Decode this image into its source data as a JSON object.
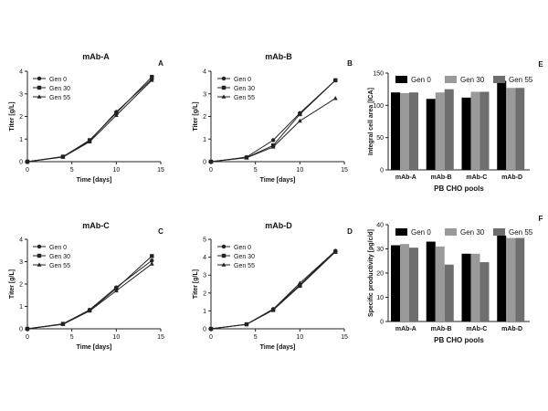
{
  "colors": {
    "axis": "#222222",
    "line": "#222222",
    "gen0": "#000000",
    "gen30": "#9a9a9a",
    "gen55": "#6e6e6e"
  },
  "chart_data": [
    {
      "type": "line",
      "panel": "A",
      "title": "mAb-A",
      "xlabel": "Time [days]",
      "ylabel": "Titer [g/L]",
      "xlim": [
        0,
        15
      ],
      "ylim": [
        0,
        4
      ],
      "xticks": [
        "0",
        "5",
        "10",
        "15"
      ],
      "yticks": [
        "0",
        "1",
        "2",
        "3",
        "4"
      ],
      "legend": "top-left",
      "grid": false,
      "series": [
        {
          "name": "Gen 0",
          "marker": "circle",
          "x": [
            0,
            4,
            7,
            10,
            14
          ],
          "y": [
            0,
            0.22,
            0.92,
            2.2,
            3.65
          ]
        },
        {
          "name": "Gen 30",
          "marker": "square",
          "x": [
            0,
            4,
            7,
            10,
            14
          ],
          "y": [
            0,
            0.22,
            0.95,
            2.15,
            3.75
          ]
        },
        {
          "name": "Gen 55",
          "marker": "triangle",
          "x": [
            0,
            4,
            7,
            10,
            14
          ],
          "y": [
            0,
            0.2,
            0.88,
            2.05,
            3.6
          ]
        }
      ]
    },
    {
      "type": "line",
      "panel": "B",
      "title": "mAb-B",
      "xlabel": "Time [days]",
      "ylabel": "Titer [g/L]",
      "xlim": [
        0,
        15
      ],
      "ylim": [
        0,
        4
      ],
      "xticks": [
        "0",
        "5",
        "10",
        "15"
      ],
      "yticks": [
        "0",
        "1",
        "2",
        "3",
        "4"
      ],
      "legend": "top-left",
      "grid": false,
      "series": [
        {
          "name": "Gen 0",
          "marker": "circle",
          "x": [
            0,
            4,
            7,
            10,
            14
          ],
          "y": [
            0,
            0.2,
            0.95,
            2.15,
            3.6
          ]
        },
        {
          "name": "Gen 30",
          "marker": "square",
          "x": [
            0,
            4,
            7,
            10,
            14
          ],
          "y": [
            0,
            0.18,
            0.72,
            2.1,
            3.6
          ]
        },
        {
          "name": "Gen 55",
          "marker": "triangle",
          "x": [
            0,
            4,
            7,
            10,
            14
          ],
          "y": [
            0,
            0.17,
            0.65,
            1.8,
            2.8
          ]
        }
      ]
    },
    {
      "type": "line",
      "panel": "C",
      "title": "mAb-C",
      "xlabel": "Time [days]",
      "ylabel": "Titer [g/L]",
      "xlim": [
        0,
        15
      ],
      "ylim": [
        0,
        4
      ],
      "xticks": [
        "0",
        "5",
        "10",
        "15"
      ],
      "yticks": [
        "0",
        "1",
        "2",
        "3",
        "4"
      ],
      "legend": "top-left",
      "grid": false,
      "series": [
        {
          "name": "Gen 0",
          "marker": "circle",
          "x": [
            0,
            4,
            7,
            10,
            14
          ],
          "y": [
            0,
            0.22,
            0.85,
            1.85,
            3.05
          ]
        },
        {
          "name": "Gen 30",
          "marker": "square",
          "x": [
            0,
            4,
            7,
            10,
            14
          ],
          "y": [
            0,
            0.22,
            0.82,
            1.8,
            3.25
          ]
        },
        {
          "name": "Gen 55",
          "marker": "triangle",
          "x": [
            0,
            4,
            7,
            10,
            14
          ],
          "y": [
            0,
            0.2,
            0.8,
            1.7,
            2.9
          ]
        }
      ]
    },
    {
      "type": "line",
      "panel": "D",
      "title": "mAb-D",
      "xlabel": "Time [days]",
      "ylabel": "Titer [g/L]",
      "xlim": [
        0,
        15
      ],
      "ylim": [
        0,
        5
      ],
      "xticks": [
        "0",
        "5",
        "10",
        "15"
      ],
      "yticks": [
        "0",
        "1",
        "2",
        "3",
        "4",
        "5"
      ],
      "legend": "top-left",
      "grid": false,
      "series": [
        {
          "name": "Gen 0",
          "marker": "circle",
          "x": [
            0,
            4,
            7,
            10,
            14
          ],
          "y": [
            0,
            0.25,
            1.1,
            2.45,
            4.35
          ]
        },
        {
          "name": "Gen 30",
          "marker": "square",
          "x": [
            0,
            4,
            7,
            10,
            14
          ],
          "y": [
            0,
            0.25,
            1.05,
            2.4,
            4.3
          ]
        },
        {
          "name": "Gen 55",
          "marker": "triangle",
          "x": [
            0,
            4,
            7,
            10,
            14
          ],
          "y": [
            0,
            0.25,
            1.1,
            2.55,
            4.35
          ]
        }
      ]
    },
    {
      "type": "bar",
      "panel": "E",
      "xlabel": "PB CHO pools",
      "ylabel": "Integral cell area [ICA]",
      "ylim": [
        0,
        150
      ],
      "yticks": [
        "0",
        "50",
        "100",
        "150"
      ],
      "categories": [
        "mAb-A",
        "mAb-B",
        "mAb-C",
        "mAb-D"
      ],
      "legend": "top",
      "grid": false,
      "series": [
        {
          "name": "Gen 0",
          "color": "gen0",
          "values": [
            120,
            110,
            112,
            138
          ]
        },
        {
          "name": "Gen 30",
          "color": "gen30",
          "values": [
            119,
            120,
            121,
            127
          ]
        },
        {
          "name": "Gen 55",
          "color": "gen55",
          "values": [
            120,
            125,
            121,
            127
          ]
        }
      ]
    },
    {
      "type": "bar",
      "panel": "F",
      "xlabel": "PB CHO pools",
      "ylabel": "Specific productivity [pg/c/d]",
      "ylim": [
        0,
        40
      ],
      "yticks": [
        "0",
        "10",
        "20",
        "30",
        "40"
      ],
      "categories": [
        "mAb-A",
        "mAb-B",
        "mAb-C",
        "mAb-D"
      ],
      "legend": "top",
      "grid": false,
      "series": [
        {
          "name": "Gen 0",
          "color": "gen0",
          "values": [
            31.5,
            33,
            28,
            35.5
          ]
        },
        {
          "name": "Gen 30",
          "color": "gen30",
          "values": [
            32,
            31,
            28,
            34.5
          ]
        },
        {
          "name": "Gen 55",
          "color": "gen55",
          "values": [
            30.5,
            23.5,
            24.5,
            34.5
          ]
        }
      ]
    }
  ]
}
